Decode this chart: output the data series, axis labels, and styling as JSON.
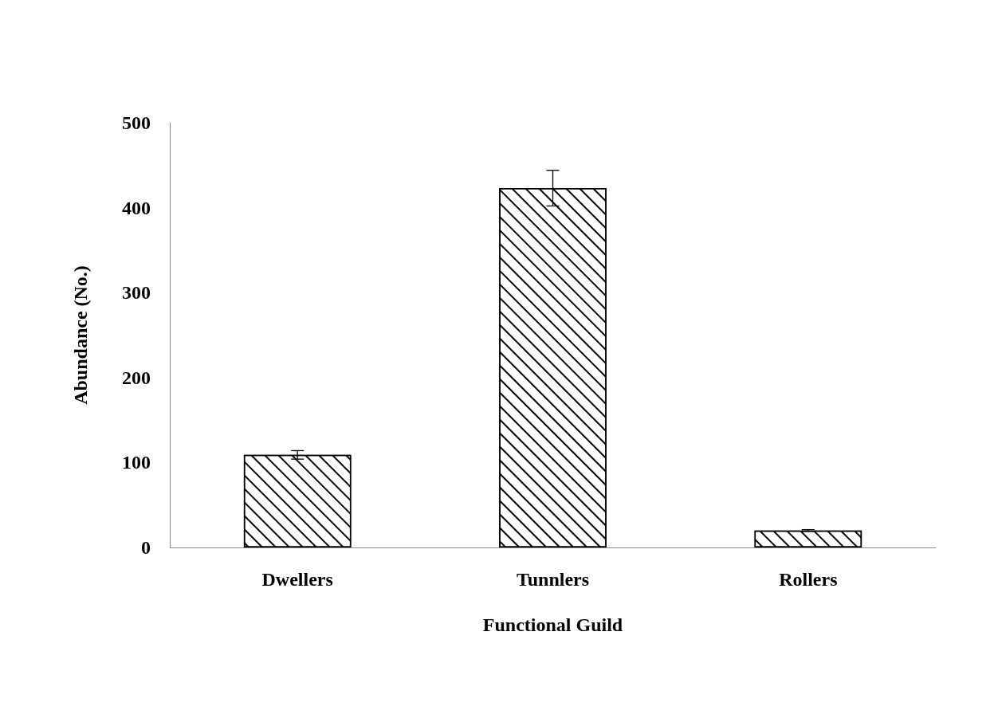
{
  "chart_data": {
    "type": "bar",
    "xlabel": "Functional Guild",
    "ylabel": "Abundance (No.)",
    "categories": [
      "Dwellers",
      "Tunnlers",
      "Rollers"
    ],
    "values": [
      109,
      423,
      20
    ],
    "errors": [
      5,
      21,
      1
    ],
    "color": "#ffffff",
    "ylim": [
      0,
      500
    ],
    "yticks": [
      0,
      100,
      200,
      300,
      400,
      500
    ],
    "grid": false
  }
}
